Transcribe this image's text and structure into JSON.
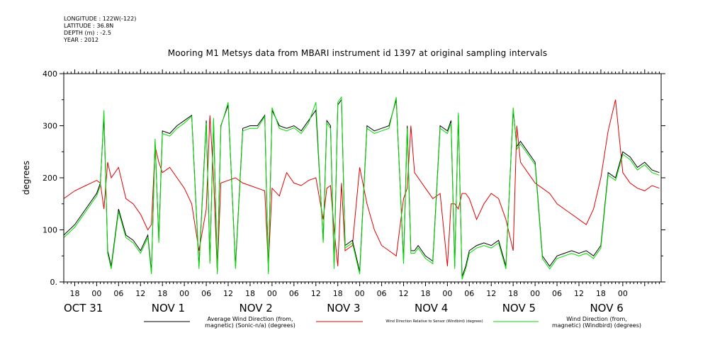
{
  "meta": {
    "longitude": "LONGITUDE : 122W(-122)",
    "latitude": "LATITUDE : 36.8N",
    "depth": "DEPTH (m) : -2.5",
    "year": "YEAR : 2012"
  },
  "colors": {
    "series1": "#000000",
    "series2": "#e00000",
    "series3": "#00dd00"
  },
  "chart_data": {
    "type": "line",
    "title": "Mooring M1 Metsys data from MBARI instrument id 1397 at original sampling intervals",
    "xlabel": "",
    "ylabel": "degrees",
    "ylim": [
      0,
      400
    ],
    "yticks": [
      0,
      100,
      200,
      300,
      400
    ],
    "y_tick_labels": [
      "0.",
      "100",
      "200",
      "300",
      "400"
    ],
    "xlim_hours": [
      -9,
      154.5
    ],
    "x_hour_ticks": [
      "18",
      "00",
      "06",
      "12",
      "18",
      "00",
      "06",
      "12",
      "18",
      "00",
      "06",
      "12",
      "18",
      "00",
      "06",
      "12",
      "18",
      "00",
      "06",
      "12",
      "18",
      "00",
      "06",
      "12",
      "18",
      "00"
    ],
    "x_day_labels": [
      {
        "label": "OCT 31",
        "hour": -9
      },
      {
        "label": "NOV  1",
        "hour": 15
      },
      {
        "label": "NOV  2",
        "hour": 39
      },
      {
        "label": "NOV  3",
        "hour": 63
      },
      {
        "label": "NOV  4",
        "hour": 87
      },
      {
        "label": "NOV  5",
        "hour": 111
      },
      {
        "label": "NOV  6",
        "hour": 135
      }
    ],
    "grid": false,
    "legend_position": "bottom",
    "series": [
      {
        "name": "Average Wind Direction (from, magnetic) (Sonic-n/a) (degrees)",
        "x": [
          -9,
          -6,
          -3,
          0,
          1,
          2,
          3,
          4,
          6,
          8,
          10,
          12,
          14,
          15,
          16,
          17,
          18,
          20,
          22,
          24,
          26,
          28,
          30,
          31,
          32,
          33,
          34,
          36,
          38,
          40,
          42,
          44,
          46,
          47,
          48,
          50,
          52,
          54,
          56,
          58,
          60,
          62,
          63,
          64,
          65,
          66,
          67,
          68,
          70,
          72,
          74,
          76,
          78,
          80,
          82,
          84,
          85,
          86,
          87,
          88,
          90,
          92,
          94,
          96,
          97,
          98,
          99,
          100,
          101,
          102,
          104,
          106,
          108,
          110,
          112,
          114,
          115,
          116,
          118,
          120,
          122,
          124,
          126,
          128,
          130,
          132,
          134,
          136,
          138,
          140,
          142,
          144,
          146,
          148,
          150,
          152,
          154
        ],
        "y": [
          90,
          110,
          140,
          170,
          190,
          320,
          60,
          30,
          140,
          90,
          80,
          60,
          90,
          20,
          270,
          80,
          290,
          285,
          300,
          310,
          320,
          30,
          310,
          40,
          310,
          20,
          300,
          340,
          30,
          295,
          300,
          300,
          320,
          20,
          330,
          300,
          295,
          300,
          290,
          310,
          330,
          80,
          310,
          300,
          30,
          340,
          350,
          70,
          80,
          20,
          300,
          290,
          295,
          300,
          350,
          40,
          300,
          60,
          60,
          70,
          50,
          40,
          300,
          290,
          310,
          30,
          320,
          10,
          30,
          60,
          70,
          75,
          70,
          80,
          30,
          330,
          260,
          270,
          250,
          230,
          50,
          30,
          50,
          55,
          60,
          55,
          60,
          50,
          70,
          210,
          200,
          250,
          240,
          220,
          230,
          215,
          210
        ]
      },
      {
        "name": "Wind Direction Relative to Sensor (Windbird) (degrees)",
        "x": [
          -9,
          -6,
          -3,
          0,
          1,
          2,
          3,
          4,
          6,
          8,
          10,
          12,
          14,
          15,
          16,
          17,
          18,
          20,
          22,
          24,
          26,
          28,
          30,
          31,
          32,
          33,
          34,
          36,
          38,
          40,
          42,
          44,
          46,
          47,
          48,
          50,
          52,
          54,
          56,
          58,
          60,
          62,
          63,
          64,
          65,
          66,
          67,
          68,
          70,
          72,
          74,
          76,
          78,
          80,
          82,
          84,
          85,
          86,
          87,
          88,
          90,
          92,
          94,
          96,
          97,
          98,
          99,
          100,
          101,
          102,
          104,
          106,
          108,
          110,
          112,
          114,
          115,
          116,
          118,
          120,
          122,
          124,
          126,
          128,
          130,
          132,
          134,
          136,
          138,
          140,
          142,
          144,
          146,
          148,
          150,
          152,
          154
        ],
        "y": [
          160,
          175,
          185,
          195,
          190,
          140,
          230,
          200,
          220,
          160,
          150,
          130,
          100,
          110,
          260,
          230,
          210,
          220,
          200,
          180,
          150,
          60,
          140,
          320,
          200,
          20,
          190,
          195,
          200,
          190,
          185,
          180,
          175,
          30,
          180,
          165,
          210,
          190,
          185,
          195,
          200,
          120,
          180,
          185,
          100,
          30,
          190,
          60,
          70,
          220,
          150,
          100,
          70,
          60,
          50,
          160,
          180,
          300,
          210,
          200,
          180,
          160,
          170,
          30,
          150,
          150,
          140,
          170,
          170,
          160,
          120,
          150,
          170,
          160,
          120,
          60,
          300,
          230,
          210,
          190,
          180,
          170,
          150,
          140,
          130,
          120,
          110,
          140,
          200,
          290,
          350,
          210,
          190,
          180,
          175,
          185,
          180
        ]
      },
      {
        "name": "Wind Direction (from, magnetic) (Windbird) (degrees)",
        "x": [
          -9,
          -6,
          -3,
          0,
          1,
          2,
          3,
          4,
          6,
          8,
          10,
          12,
          14,
          15,
          16,
          17,
          18,
          20,
          22,
          24,
          26,
          28,
          30,
          31,
          32,
          33,
          34,
          36,
          38,
          40,
          42,
          44,
          46,
          47,
          48,
          50,
          52,
          54,
          56,
          58,
          60,
          62,
          63,
          64,
          65,
          66,
          67,
          68,
          70,
          72,
          74,
          76,
          78,
          80,
          82,
          84,
          85,
          86,
          87,
          88,
          90,
          92,
          94,
          96,
          97,
          98,
          99,
          100,
          101,
          102,
          104,
          106,
          108,
          110,
          112,
          114,
          115,
          116,
          118,
          120,
          122,
          124,
          126,
          128,
          130,
          132,
          134,
          136,
          138,
          140,
          142,
          144,
          146,
          148,
          150,
          152,
          154
        ],
        "y": [
          85,
          105,
          135,
          165,
          185,
          330,
          55,
          25,
          135,
          85,
          75,
          55,
          85,
          15,
          275,
          75,
          285,
          280,
          295,
          305,
          318,
          25,
          305,
          35,
          315,
          15,
          298,
          345,
          25,
          290,
          295,
          295,
          318,
          15,
          335,
          295,
          290,
          296,
          285,
          305,
          345,
          75,
          305,
          295,
          25,
          345,
          355,
          65,
          75,
          15,
          295,
          285,
          290,
          295,
          355,
          35,
          295,
          55,
          55,
          65,
          45,
          35,
          295,
          285,
          305,
          25,
          325,
          5,
          25,
          55,
          65,
          70,
          65,
          75,
          25,
          335,
          255,
          265,
          245,
          225,
          45,
          25,
          45,
          50,
          55,
          50,
          55,
          45,
          65,
          205,
          195,
          245,
          235,
          215,
          225,
          210,
          205
        ]
      }
    ]
  },
  "legend": {
    "line1a": "Average Wind Direction (from,",
    "line1b": "magnetic) (Sonic-n/a) (degrees)",
    "line2": "Wind Direction Relative to Sensor (Windbird) (degrees)",
    "line3a": "Wind Direction (from,",
    "line3b": "magnetic) (Windbird) (degrees)"
  }
}
